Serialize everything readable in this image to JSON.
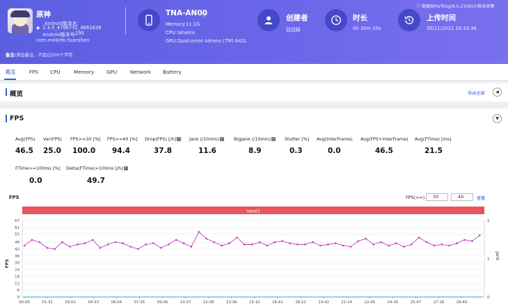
{
  "app": {
    "name": "原神",
    "android_version_name_label": "Android版本名:",
    "android_version_name": "2.3.0_4786731_4861639",
    "android_version_code_label": "Android版本号:",
    "android_version_code": "295",
    "package": "com.miHoYo.Yuanshen"
  },
  "device": {
    "model": "TNA-AN00",
    "memory_label": "Memory:",
    "memory": "11.1G",
    "cpu_label": "CPU:",
    "cpu": "lahaina",
    "gpu_label": "GPU:",
    "gpu": "Qualcomm Adreno (TM) 642L"
  },
  "creator": {
    "label": "创建者",
    "value": "冠冠网"
  },
  "duration": {
    "label": "时长",
    "value": "0h 30m 10s"
  },
  "upload": {
    "label": "上传时间",
    "value": "30/11/2021 18:10:36"
  },
  "source_note": "数据由PerfDog(6.0.210910)版本收集",
  "remark": {
    "label": "备注:",
    "text": "添加备注，不超过200个字符"
  },
  "tabs": [
    "概览",
    "FPS",
    "CPU",
    "Memory",
    "GPU",
    "Network",
    "Battery"
  ],
  "overview": {
    "title": "概览",
    "export_all": "导出全部"
  },
  "fps_section": {
    "title": "FPS"
  },
  "metrics": [
    {
      "label": "Avg(FPS)",
      "value": "46.5"
    },
    {
      "label": "Var(FPS)",
      "value": "25.0"
    },
    {
      "label": "FPS>=30 [%]",
      "value": "100.0"
    },
    {
      "label": "FPS>=40 [%]",
      "value": "94.4"
    },
    {
      "label": "Drop(FPS) [/h]",
      "value": "37.8"
    },
    {
      "label": "Jank (/10min)",
      "value": "11.6"
    },
    {
      "label": "BigJank (/10min)",
      "value": "8.9"
    },
    {
      "label": "Stutter [%]",
      "value": "0.3"
    },
    {
      "label": "Avg(InterFrame)",
      "value": "0.0"
    },
    {
      "label": "Avg(FPS+InterFrame)",
      "value": "46.5"
    },
    {
      "label": "Avg(FTime) [ms]",
      "value": "21.5"
    }
  ],
  "metrics2": [
    {
      "label": "FTime>=100ms [%]",
      "value": "0.0"
    },
    {
      "label": "Delta(FTime)>100ms [/h]",
      "value": "49.7"
    }
  ],
  "chart_controls": {
    "chart_title": "FPS",
    "threshold_label": "FPS(>=)",
    "threshold_1": "30",
    "threshold_2": "40",
    "query_label": "查看",
    "band_label": "label1"
  },
  "colors": {
    "header": "#6366e6",
    "accent": "#3b5bdb",
    "band": "#e8555e",
    "series": "#c63ec6"
  },
  "chart_data": {
    "type": "line",
    "title": "FPS",
    "ylabel": "FPS",
    "y2label": "Jank",
    "ylim": [
      0,
      67
    ],
    "y2lim": [
      0,
      2
    ],
    "yticks": [
      0,
      6,
      12,
      18,
      24,
      30,
      36,
      42,
      48,
      55,
      61,
      67
    ],
    "y2ticks": [
      0,
      1,
      2
    ],
    "x_ticks": [
      "00:00",
      "01:31",
      "03:02",
      "04:33",
      "06:04",
      "07:35",
      "09:06",
      "10:37",
      "12:08",
      "13:39",
      "15:10",
      "16:41",
      "18:12",
      "19:43",
      "21:14",
      "22:45",
      "24:16",
      "25:47",
      "27:18",
      "28:49"
    ],
    "x_ticks_sec": [
      0,
      91,
      182,
      273,
      364,
      455,
      546,
      637,
      728,
      819,
      910,
      1001,
      1092,
      1183,
      1274,
      1365,
      1456,
      1547,
      1638,
      1729
    ],
    "x_max_sec": 1810,
    "series": [
      {
        "x_sec": [
          0,
          30,
          60,
          90,
          120,
          150,
          180,
          210,
          240,
          270,
          300,
          330,
          360,
          390,
          420,
          450,
          480,
          510,
          540,
          570,
          600,
          630,
          660,
          690,
          720,
          750,
          780,
          810,
          840,
          870,
          900,
          930,
          960,
          990,
          1020,
          1050,
          1080,
          1110,
          1140,
          1170,
          1200,
          1230,
          1260,
          1290,
          1320,
          1350,
          1380,
          1410,
          1440,
          1470,
          1500,
          1530,
          1560,
          1590,
          1620,
          1650,
          1680,
          1710,
          1740,
          1770,
          1800
        ],
        "values": [
          45,
          50,
          48,
          43,
          42,
          48,
          44,
          46,
          47,
          50,
          43,
          46,
          48,
          47,
          44,
          42,
          46,
          47,
          43,
          46,
          50,
          47,
          44,
          57,
          51,
          48,
          45,
          47,
          52,
          46,
          46,
          48,
          45,
          48,
          49,
          47,
          46,
          46,
          48,
          45,
          46,
          47,
          45,
          44,
          49,
          51,
          46,
          48,
          45,
          47,
          44,
          46,
          52,
          48,
          45,
          46,
          45,
          47,
          50,
          49,
          54
        ]
      }
    ]
  }
}
